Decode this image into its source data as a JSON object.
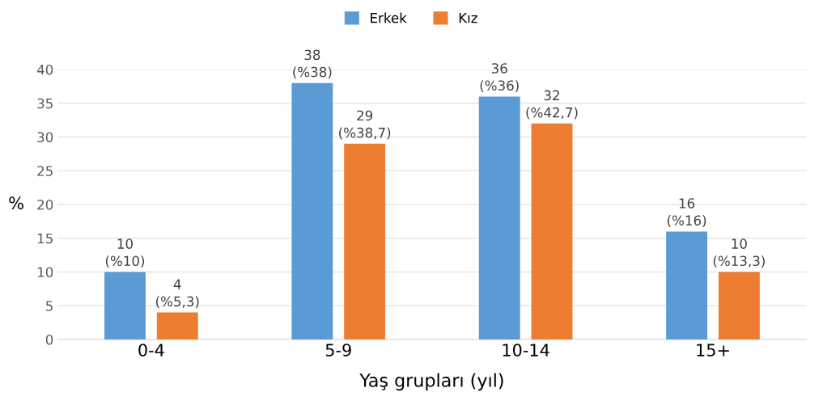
{
  "chart_data": {
    "type": "bar",
    "xlabel": "Yaş grupları (yıl)",
    "ylabel": "%",
    "categories": [
      "0-4",
      "5-9",
      "10-14",
      "15+"
    ],
    "series": [
      {
        "name": "Erkek",
        "color": "#5b9bd5",
        "values": [
          10,
          38,
          36,
          16
        ],
        "value_labels": [
          "10\n(%10)",
          "38\n(%38)",
          "36\n(%36)",
          "16\n(%16)"
        ]
      },
      {
        "name": "Kız",
        "color": "#ed7d31",
        "values": [
          4,
          29,
          32,
          10
        ],
        "value_labels": [
          "4\n(%5,3)",
          "29\n(%38,7)",
          "32\n(%42,7)",
          "10\n(%13,3)"
        ]
      }
    ],
    "ylim": [
      0,
      40
    ],
    "yticks": [
      0,
      5,
      10,
      15,
      20,
      25,
      30,
      35,
      40
    ],
    "grid": "y",
    "legend": "top"
  }
}
